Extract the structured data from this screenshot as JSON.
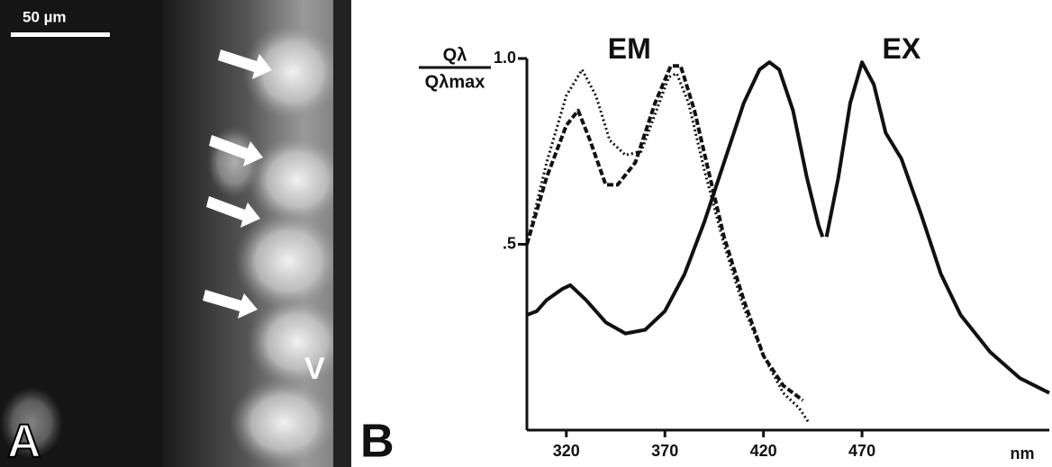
{
  "panel_a": {
    "scale_bar": "50 µm",
    "label": "A",
    "marker": "V"
  },
  "chart_data": {
    "type": "line",
    "panel_label": "B",
    "ylabel_numerator": "Qλ",
    "ylabel_denominator": "Qλmax",
    "xlabel": "nm",
    "annotations": [
      {
        "text": "EM",
        "x": 352,
        "y": 1.02
      },
      {
        "text": "EX",
        "x": 490,
        "y": 1.02
      }
    ],
    "xlim": [
      300,
      565
    ],
    "ylim": [
      0,
      1
    ],
    "xticks": [
      320,
      370,
      420,
      470
    ],
    "yticks": [
      {
        "value": 0.5,
        "label": ".5"
      },
      {
        "value": 1,
        "label": "1.0"
      }
    ],
    "series": [
      {
        "color": "#111111",
        "dash": "dotted",
        "x": [
          300,
          310,
          320,
          328,
          335,
          342,
          350,
          358,
          365,
          372,
          376,
          382,
          390,
          400,
          410,
          420,
          430,
          438,
          443
        ],
        "values": [
          0.5,
          0.72,
          0.9,
          0.97,
          0.9,
          0.78,
          0.74,
          0.75,
          0.85,
          0.95,
          0.96,
          0.88,
          0.7,
          0.5,
          0.33,
          0.2,
          0.1,
          0.06,
          0.02
        ]
      },
      {
        "color": "#111111",
        "dash": "dashed",
        "x": [
          300,
          310,
          320,
          326,
          332,
          340,
          346,
          355,
          365,
          373,
          378,
          385,
          392,
          400,
          410,
          420,
          430,
          440
        ],
        "values": [
          0.5,
          0.68,
          0.82,
          0.86,
          0.78,
          0.66,
          0.66,
          0.72,
          0.88,
          0.98,
          0.98,
          0.86,
          0.7,
          0.52,
          0.35,
          0.2,
          0.12,
          0.08
        ]
      },
      {
        "color": "#111111",
        "dash": "solid",
        "x": [
          300,
          305,
          310,
          318,
          322,
          330,
          340,
          350,
          360,
          370,
          380,
          390,
          400,
          410,
          418,
          423,
          428,
          435,
          442,
          448,
          450
        ],
        "values": [
          0.31,
          0.32,
          0.35,
          0.38,
          0.39,
          0.35,
          0.29,
          0.26,
          0.27,
          0.32,
          0.42,
          0.56,
          0.72,
          0.88,
          0.97,
          0.99,
          0.97,
          0.86,
          0.68,
          0.55,
          0.52
        ]
      },
      {
        "color": "#111111",
        "dash": "solid",
        "x": [
          452,
          458,
          464,
          470,
          476,
          482,
          490,
          500,
          510,
          520,
          535,
          550,
          565
        ],
        "values": [
          0.52,
          0.68,
          0.88,
          0.99,
          0.93,
          0.8,
          0.73,
          0.58,
          0.42,
          0.31,
          0.21,
          0.14,
          0.1
        ]
      }
    ]
  }
}
